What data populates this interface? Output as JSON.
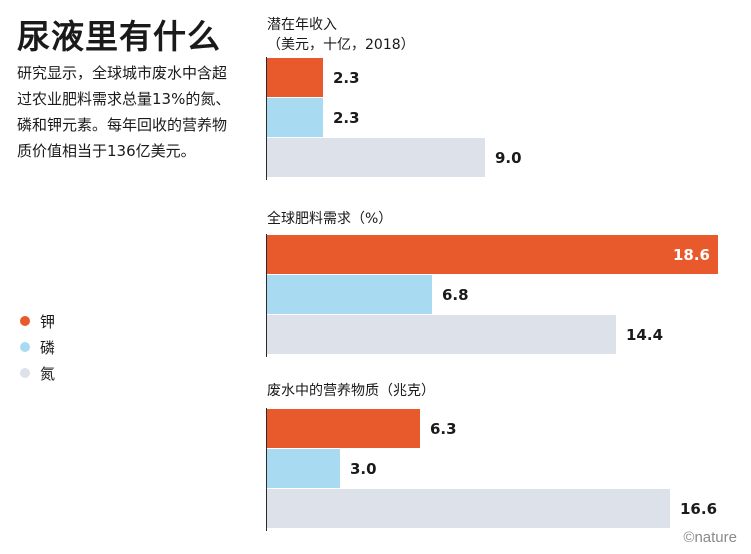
{
  "header": {
    "title": "尿液里有什么",
    "intro": "研究显示，全球城市废水中含超过农业肥料需求总量13%的氮、磷和钾元素。每年回收的营养物质价值相当于136亿美元。"
  },
  "colors": {
    "potassium": "#e8592b",
    "phosphorus": "#a8dbf1",
    "nitrogen": "#dde2ea",
    "axis": "#2a2a2a"
  },
  "legend": [
    {
      "label": "钾",
      "color": "#e8592b"
    },
    {
      "label": "磷",
      "color": "#a8dbf1"
    },
    {
      "label": "氮",
      "color": "#dde2ea"
    }
  ],
  "chart_data": [
    {
      "type": "bar",
      "orientation": "horizontal",
      "title": "潜在年收入",
      "subtitle": "（美元，十亿，2018）",
      "categories": [
        "钾",
        "磷",
        "氮"
      ],
      "values": [
        2.3,
        2.3,
        9.0
      ],
      "value_labels": [
        "2.3",
        "2.3",
        "9.0"
      ],
      "xlim": [
        0,
        18.6
      ]
    },
    {
      "type": "bar",
      "orientation": "horizontal",
      "title": "全球肥料需求（%）",
      "categories": [
        "钾",
        "磷",
        "氮"
      ],
      "values": [
        18.6,
        6.8,
        14.4
      ],
      "value_labels": [
        "18.6",
        "6.8",
        "14.4"
      ],
      "xlim": [
        0,
        18.6
      ]
    },
    {
      "type": "bar",
      "orientation": "horizontal",
      "title": "废水中的营养物质（兆克）",
      "categories": [
        "钾",
        "磷",
        "氮"
      ],
      "values": [
        6.3,
        3.0,
        16.6
      ],
      "value_labels": [
        "6.3",
        "3.0",
        "16.6"
      ],
      "xlim": [
        0,
        18.6
      ]
    }
  ],
  "credit": "©nature"
}
